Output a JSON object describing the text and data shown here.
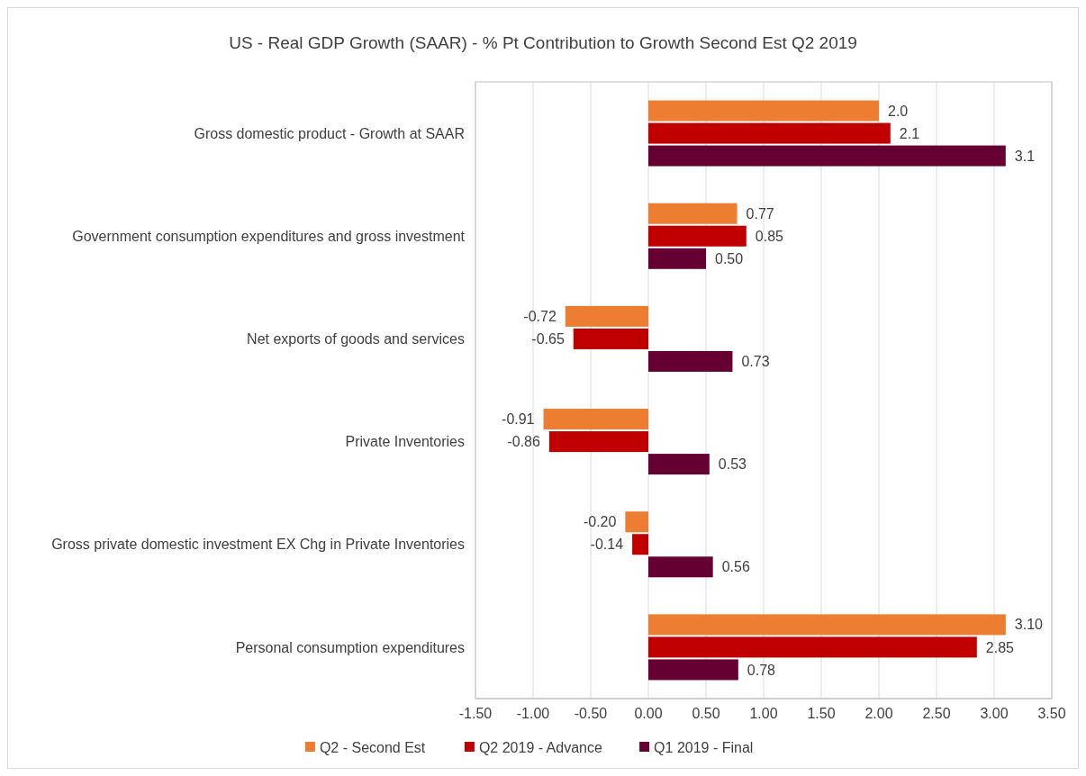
{
  "chart_data": {
    "type": "bar",
    "orientation": "horizontal",
    "title": "US - Real GDP Growth (SAAR) - % Pt Contribution to Growth Second Est Q2 2019",
    "categories": [
      "Gross domestic product - Growth at SAAR",
      "Government consumption expenditures and gross investment",
      "Net exports of goods and services",
      "Private Inventories",
      "Gross private domestic investment EX Chg in Private Inventories",
      "Personal consumption expenditures"
    ],
    "series": [
      {
        "name": "Q2 - Second Est",
        "color": "#ed7d31",
        "values": [
          2.0,
          0.77,
          -0.72,
          -0.91,
          -0.2,
          3.1
        ],
        "value_labels": [
          "2.0",
          "0.77",
          "-0.72",
          "-0.91",
          "-0.20",
          "3.10"
        ]
      },
      {
        "name": "Q2 2019 - Advance",
        "color": "#c00000",
        "values": [
          2.1,
          0.85,
          -0.65,
          -0.86,
          -0.14,
          2.85
        ],
        "value_labels": [
          "2.1",
          "0.85",
          "-0.65",
          "-0.86",
          "-0.14",
          "2.85"
        ]
      },
      {
        "name": "Q1 2019 - Final",
        "color": "#660033",
        "values": [
          3.1,
          0.5,
          0.73,
          0.53,
          0.56,
          0.78
        ],
        "value_labels": [
          "3.1",
          "0.50",
          "0.73",
          "0.53",
          "0.56",
          "0.78"
        ]
      }
    ],
    "xlim": [
      -1.5,
      3.5
    ],
    "xticks": [
      {
        "value": -1.5,
        "label": "-1.50"
      },
      {
        "value": -1,
        "label": "-1.00"
      },
      {
        "value": -0.5,
        "label": "-0.50"
      },
      {
        "value": 0,
        "label": "0.00"
      },
      {
        "value": 0.5,
        "label": "0.50"
      },
      {
        "value": 1,
        "label": "1.00"
      },
      {
        "value": 1.5,
        "label": "1.50"
      },
      {
        "value": 2,
        "label": "2.00"
      },
      {
        "value": 2.5,
        "label": "2.50"
      },
      {
        "value": 3,
        "label": "3.00"
      },
      {
        "value": 3.5,
        "label": "3.50"
      }
    ],
    "grid": "x",
    "legend": "bottom"
  }
}
